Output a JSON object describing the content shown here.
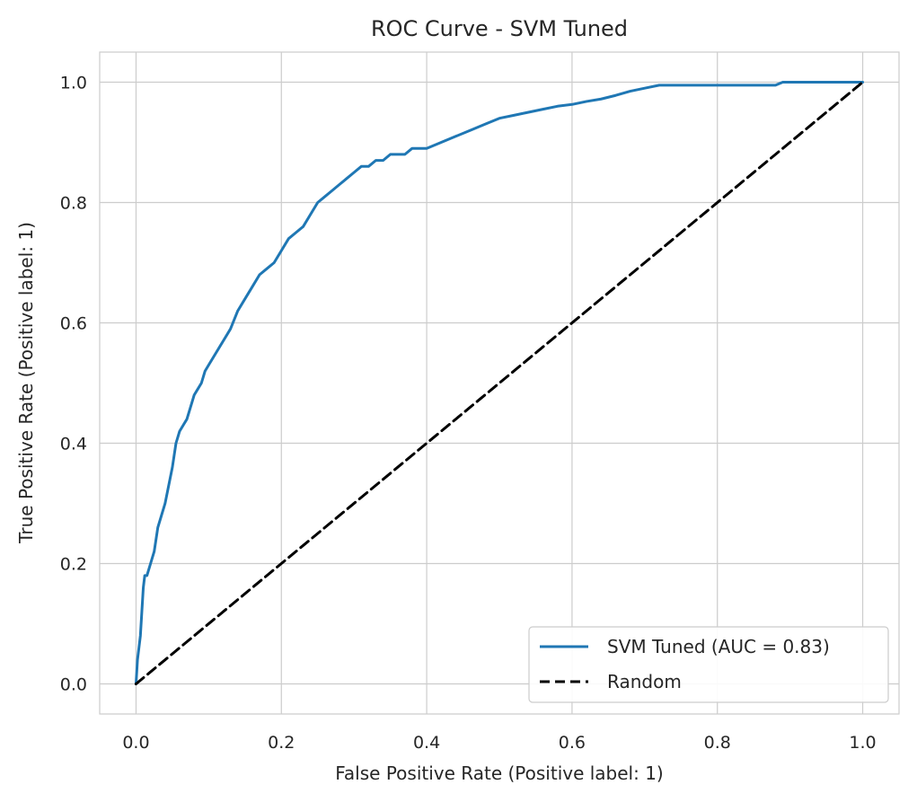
{
  "chart_data": {
    "type": "line",
    "title": "ROC Curve - SVM Tuned",
    "xlabel": "False Positive Rate (Positive label: 1)",
    "ylabel": "True Positive Rate (Positive label: 1)",
    "xlim": [
      -0.05,
      1.05
    ],
    "ylim": [
      -0.05,
      1.05
    ],
    "xticks": [
      0.0,
      0.2,
      0.4,
      0.6,
      0.8,
      1.0
    ],
    "yticks": [
      0.0,
      0.2,
      0.4,
      0.6,
      0.8,
      1.0
    ],
    "xtick_labels": [
      "0.0",
      "0.2",
      "0.4",
      "0.6",
      "0.8",
      "1.0"
    ],
    "ytick_labels": [
      "0.0",
      "0.2",
      "0.4",
      "0.6",
      "0.8",
      "1.0"
    ],
    "grid": true,
    "legend_position": "bottom-right",
    "series": [
      {
        "name": "SVM Tuned (AUC = 0.83)",
        "color": "#1f77b4",
        "style": "solid",
        "x": [
          0.0,
          0.002,
          0.004,
          0.006,
          0.008,
          0.01,
          0.012,
          0.015,
          0.02,
          0.025,
          0.03,
          0.035,
          0.04,
          0.045,
          0.05,
          0.055,
          0.06,
          0.065,
          0.07,
          0.075,
          0.08,
          0.085,
          0.09,
          0.095,
          0.1,
          0.11,
          0.12,
          0.13,
          0.14,
          0.15,
          0.16,
          0.17,
          0.18,
          0.19,
          0.2,
          0.21,
          0.22,
          0.23,
          0.24,
          0.25,
          0.26,
          0.27,
          0.28,
          0.29,
          0.3,
          0.31,
          0.32,
          0.33,
          0.34,
          0.35,
          0.36,
          0.37,
          0.38,
          0.39,
          0.4,
          0.42,
          0.44,
          0.46,
          0.48,
          0.5,
          0.52,
          0.54,
          0.56,
          0.58,
          0.6,
          0.62,
          0.64,
          0.66,
          0.68,
          0.7,
          0.72,
          0.74,
          0.76,
          0.78,
          0.8,
          0.82,
          0.84,
          0.86,
          0.88,
          0.89,
          0.9,
          0.92,
          0.94,
          0.96,
          0.98,
          1.0
        ],
        "y": [
          0.0,
          0.04,
          0.06,
          0.08,
          0.12,
          0.16,
          0.18,
          0.18,
          0.2,
          0.22,
          0.26,
          0.28,
          0.3,
          0.33,
          0.36,
          0.4,
          0.42,
          0.43,
          0.44,
          0.46,
          0.48,
          0.49,
          0.5,
          0.52,
          0.53,
          0.55,
          0.57,
          0.59,
          0.62,
          0.64,
          0.66,
          0.68,
          0.69,
          0.7,
          0.72,
          0.74,
          0.75,
          0.76,
          0.78,
          0.8,
          0.81,
          0.82,
          0.83,
          0.84,
          0.85,
          0.86,
          0.86,
          0.87,
          0.87,
          0.88,
          0.88,
          0.88,
          0.89,
          0.89,
          0.89,
          0.9,
          0.91,
          0.92,
          0.93,
          0.94,
          0.945,
          0.95,
          0.955,
          0.96,
          0.963,
          0.968,
          0.972,
          0.978,
          0.985,
          0.99,
          0.995,
          0.995,
          0.995,
          0.995,
          0.995,
          0.995,
          0.995,
          0.995,
          0.995,
          1.0,
          1.0,
          1.0,
          1.0,
          1.0,
          1.0,
          1.0
        ]
      },
      {
        "name": "Random",
        "color": "#000000",
        "style": "dashed",
        "x": [
          0.0,
          1.0
        ],
        "y": [
          0.0,
          1.0
        ]
      }
    ]
  }
}
